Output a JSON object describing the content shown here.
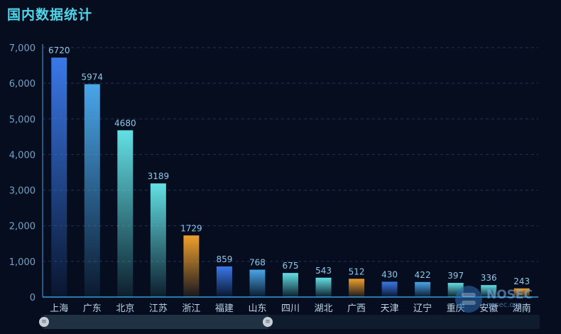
{
  "title": "国内数据统计",
  "chart_data": {
    "type": "bar",
    "categories": [
      "上海",
      "广东",
      "北京",
      "江苏",
      "浙江",
      "福建",
      "山东",
      "四川",
      "湖北",
      "广西",
      "天津",
      "辽宁",
      "重庆",
      "安徽",
      "湖南"
    ],
    "values": [
      6720,
      5974,
      4680,
      3189,
      1729,
      859,
      768,
      675,
      543,
      512,
      430,
      422,
      397,
      336,
      243
    ],
    "bar_palettes": [
      "blue",
      "lightblue",
      "cyan",
      "cyan",
      "orange",
      "blue",
      "lightblue",
      "cyan",
      "cyan",
      "orange",
      "blue",
      "lightblue",
      "cyan",
      "cyan",
      "orange"
    ],
    "colors": {
      "blue": "#3a78e8",
      "lightblue": "#4aa6e8",
      "cyan": "#63e0e4",
      "orange": "#f0a02c"
    },
    "ylim": [
      0,
      7000
    ],
    "yticks": [
      "0",
      "1,000",
      "2,000",
      "3,000",
      "4,000",
      "5,000",
      "6,000",
      "7,000"
    ],
    "ytick_values": [
      0,
      1000,
      2000,
      3000,
      4000,
      5000,
      6000,
      7000
    ],
    "grid": true,
    "xlabel": "",
    "ylabel": ""
  },
  "zoom": {
    "start_handle_icon": "≡",
    "end_handle_icon": "≡"
  },
  "watermark": {
    "icon": "nosec-logo-icon",
    "text": "NOSEC",
    "sub": "nosec.org"
  }
}
